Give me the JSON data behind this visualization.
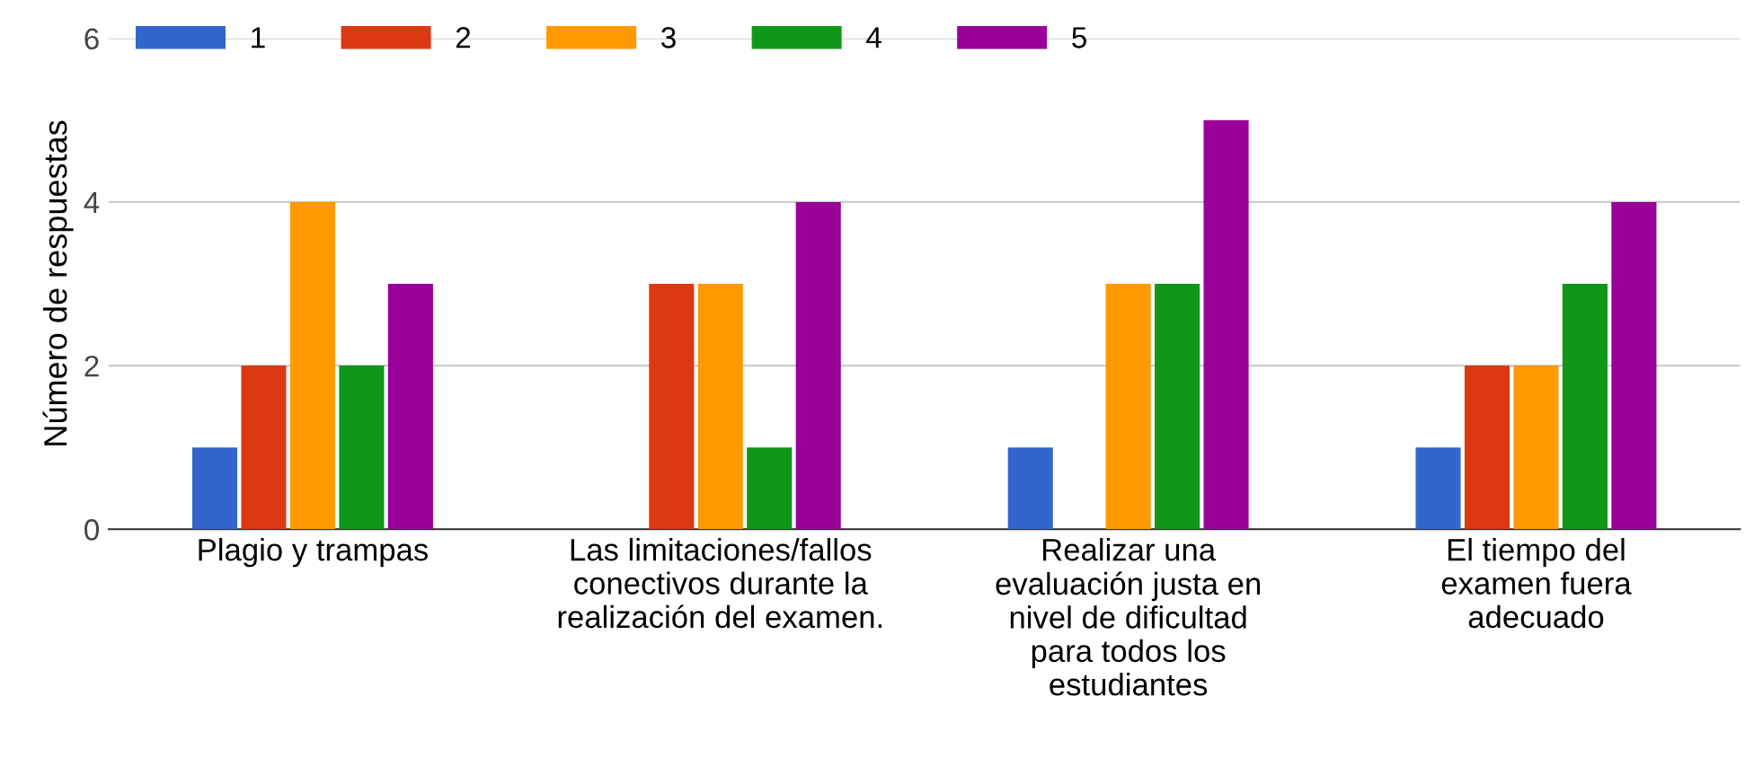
{
  "chart_data": {
    "type": "bar",
    "ylabel": "Número de respuestas",
    "categories": [
      "Plagio y trampas",
      "Las limitaciones/fallos\nconectivos durante la\nrealización del examen.",
      "Realizar una\nevaluación justa en\nnivel de dificultad\npara todos los\nestudiantes",
      "El tiempo del\nexamen fuera\nadecuado"
    ],
    "series": [
      {
        "name": "1",
        "color": "#3366cc",
        "values": [
          1,
          0,
          1,
          1
        ]
      },
      {
        "name": "2",
        "color": "#dc3912",
        "values": [
          2,
          3,
          0,
          2
        ]
      },
      {
        "name": "3",
        "color": "#ff9900",
        "values": [
          4,
          3,
          3,
          2
        ]
      },
      {
        "name": "4",
        "color": "#109618",
        "values": [
          2,
          1,
          3,
          3
        ]
      },
      {
        "name": "5",
        "color": "#990099",
        "values": [
          3,
          4,
          5,
          4
        ]
      }
    ],
    "ylim": [
      0,
      6
    ],
    "yticks": [
      0,
      2,
      4,
      6
    ],
    "grid": "y",
    "legend": "top left"
  }
}
